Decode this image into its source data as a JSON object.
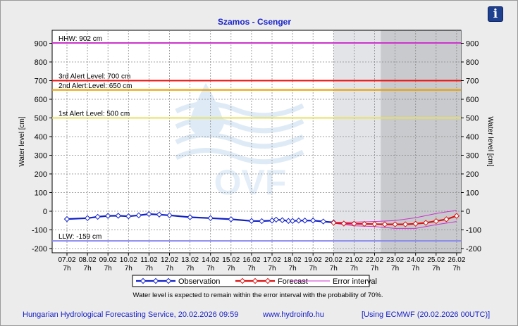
{
  "info_button": {
    "icon": "info-icon",
    "glyph": "i"
  },
  "chart_data": {
    "type": "line",
    "title": "Szamos - Csenger",
    "ylabel_left": "Water level [cm]",
    "ylabel_right": "Water level [cm]",
    "ylim": [
      -200,
      950
    ],
    "y_ticks": [
      -200,
      -100,
      0,
      100,
      200,
      300,
      400,
      500,
      600,
      700,
      800,
      900
    ],
    "x_ticks": [
      {
        "date": "07.02",
        "time": "7h"
      },
      {
        "date": "08.02",
        "time": "7h"
      },
      {
        "date": "09.02",
        "time": "7h"
      },
      {
        "date": "10.02",
        "time": "7h"
      },
      {
        "date": "11.02",
        "time": "7h"
      },
      {
        "date": "12.02",
        "time": "7h"
      },
      {
        "date": "13.02",
        "time": "7h"
      },
      {
        "date": "14.02",
        "time": "7h"
      },
      {
        "date": "15.02",
        "time": "7h"
      },
      {
        "date": "16.02",
        "time": "7h"
      },
      {
        "date": "17.02",
        "time": "7h"
      },
      {
        "date": "18.02",
        "time": "7h"
      },
      {
        "date": "19.02",
        "time": "7h"
      },
      {
        "date": "20.02",
        "time": "7h"
      },
      {
        "date": "21.02",
        "time": "7h"
      },
      {
        "date": "22.02",
        "time": "7h"
      },
      {
        "date": "23.02",
        "time": "7h"
      },
      {
        "date": "24.02",
        "time": "7h"
      },
      {
        "date": "25.02",
        "time": "7h"
      },
      {
        "date": "26.02",
        "time": "7h"
      }
    ],
    "reference_lines": [
      {
        "label": "HHW: 902 cm",
        "value": 902,
        "color": "#cc33cc"
      },
      {
        "label": "3rd Alert Level: 700 cm",
        "value": 700,
        "color": "#ee1111"
      },
      {
        "label": "2nd Alert Level: 650 cm",
        "value": 650,
        "color": "#e8a000"
      },
      {
        "label": "1st Alert Level: 500 cm",
        "value": 500,
        "color": "#e8e060"
      },
      {
        "label": "LLW: -159 cm",
        "value": -159,
        "color": "#8888ee"
      }
    ],
    "forecast_shade_start_day": 20.0,
    "ecmwf_shade_start_day": 22.3,
    "observation": [
      [
        7.0,
        -42
      ],
      [
        8.0,
        -37
      ],
      [
        8.5,
        -30
      ],
      [
        9.0,
        -25
      ],
      [
        9.5,
        -24
      ],
      [
        10.0,
        -27
      ],
      [
        10.5,
        -22
      ],
      [
        11.0,
        -15
      ],
      [
        11.5,
        -18
      ],
      [
        12.0,
        -22
      ],
      [
        13.0,
        -32
      ],
      [
        14.0,
        -37
      ],
      [
        15.0,
        -43
      ],
      [
        16.0,
        -52
      ],
      [
        16.5,
        -53
      ],
      [
        17.0,
        -50
      ],
      [
        17.2,
        -45
      ],
      [
        17.5,
        -48
      ],
      [
        17.8,
        -52
      ],
      [
        18.0,
        -52
      ],
      [
        18.3,
        -50
      ],
      [
        18.6,
        -50
      ],
      [
        19.0,
        -50
      ],
      [
        19.5,
        -55
      ],
      [
        20.0,
        -60
      ]
    ],
    "forecast": [
      [
        20.0,
        -62
      ],
      [
        20.5,
        -66
      ],
      [
        21.0,
        -67
      ],
      [
        21.5,
        -68
      ],
      [
        22.0,
        -69
      ],
      [
        22.5,
        -70
      ],
      [
        23.0,
        -70
      ],
      [
        23.5,
        -70
      ],
      [
        24.0,
        -67
      ],
      [
        24.5,
        -62
      ],
      [
        25.0,
        -53
      ],
      [
        25.5,
        -43
      ],
      [
        26.0,
        -25
      ]
    ],
    "error_upper": [
      [
        20.0,
        -60
      ],
      [
        21.0,
        -58
      ],
      [
        22.0,
        -55
      ],
      [
        23.0,
        -50
      ],
      [
        24.0,
        -35
      ],
      [
        25.0,
        -12
      ],
      [
        26.0,
        5
      ]
    ],
    "error_lower": [
      [
        20.0,
        -64
      ],
      [
        21.0,
        -78
      ],
      [
        22.0,
        -82
      ],
      [
        23.0,
        -92
      ],
      [
        24.0,
        -92
      ],
      [
        25.0,
        -72
      ],
      [
        26.0,
        -55
      ]
    ],
    "watermark": "OVF",
    "legend": [
      {
        "name": "Observation",
        "color": "#1020c8",
        "marker": "diamond"
      },
      {
        "name": "Forecast",
        "color": "#dd1111",
        "marker": "diamond"
      },
      {
        "name": "Error interval",
        "color": "#cc33cc",
        "marker": "none"
      }
    ],
    "note": "Water level is expected to remain within the error interval with the probability of 70%."
  },
  "footer": {
    "left": "Hungarian Hydrological Forecasting Service, 20.02.2026 09:59",
    "center": "www.hydroinfo.hu",
    "right": "[Using ECMWF (20.02.2026  00UTC)]"
  }
}
